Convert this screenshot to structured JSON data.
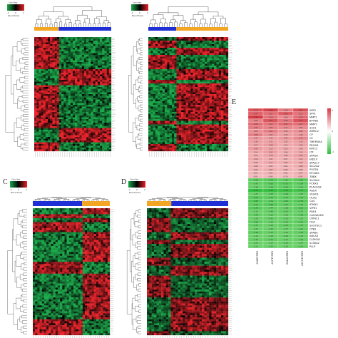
{
  "colors": {
    "high": "#e8232a",
    "mid": "#000000",
    "low": "#1aa84a",
    "group_blue": "#1e2fd6",
    "group_orange": "#f2a623",
    "pink_high": "#d83a44",
    "pink_low": "#fbe3e3",
    "green_low": "#2fbf3d",
    "green_pale": "#9fe08f"
  },
  "panels": [
    {
      "id": "A",
      "label": "",
      "key_title": "Color Key",
      "key_sub": "Row Z-Score",
      "key_ticks": [
        "-2",
        "0",
        "2"
      ],
      "group_bar": [
        "orange",
        "blue"
      ],
      "seed": 11
    },
    {
      "id": "B",
      "label": "",
      "key_title": "Color Key",
      "key_sub": "Row Z-Score",
      "key_ticks": [
        "-2",
        "0",
        "2"
      ],
      "group_bar": [
        "blue",
        "orange"
      ],
      "seed": 23
    },
    {
      "id": "C",
      "label": "C",
      "key_title": "Color Key",
      "key_sub": "Row Z-Score",
      "key_ticks": [
        "-2",
        "0",
        "2"
      ],
      "group_bar": [
        "blue",
        "orange"
      ],
      "seed": 37
    },
    {
      "id": "D",
      "label": "D",
      "key_title": "Color Key",
      "key_sub": "Row Z-Score",
      "key_ticks": [
        "-2",
        "0",
        "2"
      ],
      "group_bar": [
        "orange",
        "blue"
      ],
      "seed": 41
    }
  ],
  "chart_data": {
    "type": "heatmap",
    "label": "E",
    "legend_ticks": [
      "2",
      "0",
      "-2"
    ],
    "columns": [
      "GSE10667",
      "GSE11347",
      "GSE47460",
      "GSE110147"
    ],
    "rows": [
      {
        "gene": "KRT5",
        "values": [
          2.73,
          3.08,
          1.95,
          2.81
        ]
      },
      {
        "gene": "SPP1",
        "values": [
          2.47,
          2.21,
          2.56,
          2.12
        ]
      },
      {
        "gene": "MMP1",
        "values": [
          3.39,
          2.16,
          1.68,
          2.25
        ]
      },
      {
        "gene": "BPIFB1",
        "values": [
          1.83,
          2.67,
          2.08,
          2.74
        ]
      },
      {
        "gene": "MMP7",
        "values": [
          2.26,
          2.14,
          2.31,
          2.21
        ]
      },
      {
        "gene": "SAA1",
        "values": [
          1.95,
          1.85,
          1.72,
          1.64
        ]
      },
      {
        "gene": "ARMC2",
        "values": [
          1.62,
          1.91,
          1.52,
          1.62
        ]
      },
      {
        "gene": "CP",
        "values": [
          1.89,
          1.57,
          1.33,
          1.46
        ]
      },
      {
        "gene": "CE",
        "values": [
          1.47,
          1.34,
          1.44,
          1.72
        ]
      },
      {
        "gene": "TMEM45A",
        "values": [
          1.36,
          1.31,
          1.25,
          1.33
        ]
      },
      {
        "gene": "PROM1",
        "values": [
          1.27,
          1.38,
          1.14,
          1.25
        ]
      },
      {
        "gene": "KRT15",
        "values": [
          1.41,
          1.23,
          1.15,
          1.06
        ]
      },
      {
        "gene": "LTF",
        "values": [
          1.14,
          1.32,
          1.06,
          1.13
        ]
      },
      {
        "gene": "SPAG6",
        "values": [
          1.04,
          1.18,
          1.08,
          1.24
        ]
      },
      {
        "gene": "NID10",
        "values": [
          1.16,
          1.04,
          0.97,
          1.12
        ]
      },
      {
        "gene": "SPAG17",
        "values": [
          0.98,
          1.11,
          1.05,
          1.02
        ]
      },
      {
        "gene": "SLC2A2",
        "values": [
          1.06,
          0.95,
          0.92,
          1.08
        ]
      },
      {
        "gene": "POSTN",
        "values": [
          0.94,
          1.07,
          0.96,
          0.88
        ]
      },
      {
        "gene": "EFCAB1",
        "values": [
          0.87,
          0.93,
          0.85,
          0.97
        ]
      },
      {
        "gene": "ZBBX",
        "values": [
          0.81,
          0.86,
          0.79,
          0.92
        ]
      },
      {
        "gene": "SLC6A4",
        "values": [
          -1.58,
          -1.72,
          -1.45,
          -1.69
        ]
      },
      {
        "gene": "PCNX3",
        "values": [
          -1.42,
          -1.63,
          -1.71,
          -1.54
        ]
      },
      {
        "gene": "PLA2G1B",
        "values": [
          -1.36,
          -1.48,
          -1.54,
          -1.41
        ]
      },
      {
        "gene": "AGER",
        "values": [
          -2.52,
          -2.46,
          -2.34,
          -2.13
        ]
      },
      {
        "gene": "VEGFD",
        "values": [
          -1.27,
          -1.39,
          -1.46,
          -1.31
        ]
      },
      {
        "gene": "ITLN2",
        "values": [
          -1.64,
          -1.53,
          -1.44,
          -1.38
        ]
      },
      {
        "gene": "CA4",
        "values": [
          -1.83,
          -1.54,
          -1.62,
          -1.78
        ]
      },
      {
        "gene": "RTKN2",
        "values": [
          -1.52,
          -1.69,
          -1.47,
          -1.45
        ]
      },
      {
        "gene": "VIPR1",
        "values": [
          -1.73,
          -1.44,
          -1.38,
          -1.62
        ]
      },
      {
        "gene": "PDE4",
        "values": [
          -1.31,
          -1.46,
          -1.52,
          -1.37
        ]
      },
      {
        "gene": "CACNA2D2",
        "values": [
          -1.44,
          -1.35,
          -1.29,
          -1.48
        ]
      },
      {
        "gene": "CRTAC1",
        "values": [
          -1.26,
          -1.41,
          -1.33,
          -1.22
        ]
      },
      {
        "gene": "FIGF",
        "values": [
          -1.58,
          -1.36,
          -1.42,
          -1.51
        ]
      },
      {
        "gene": "SOSTDC1",
        "values": [
          -1.37,
          -1.28,
          -1.45,
          -1.33
        ]
      },
      {
        "gene": "CPB2",
        "values": [
          -1.22,
          -1.34,
          -1.27,
          -1.41
        ]
      },
      {
        "gene": "SPABA",
        "values": [
          -1.46,
          -1.31,
          -1.24,
          -1.36
        ]
      },
      {
        "gene": "ABCA3",
        "values": [
          -1.19,
          -1.28,
          -1.36,
          -1.25
        ]
      },
      {
        "gene": "CLDN18",
        "values": [
          -1.33,
          -1.42,
          -1.21,
          -1.29
        ]
      },
      {
        "gene": "S100A2",
        "values": [
          -1.27,
          -1.19,
          -1.32,
          -1.24
        ]
      },
      {
        "gene": "PLLP",
        "values": [
          -1.21,
          -1.25,
          -1.18,
          -1.31
        ]
      }
    ]
  }
}
